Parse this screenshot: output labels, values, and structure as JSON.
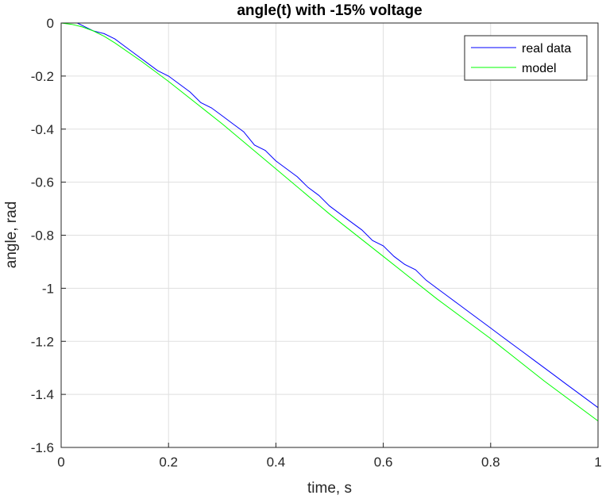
{
  "chart_data": {
    "type": "line",
    "title": "angle(t) with -15% voltage",
    "xlabel": "time, s",
    "ylabel": "angle, rad",
    "xlim": [
      0,
      1
    ],
    "ylim": [
      -1.6,
      0
    ],
    "grid": true,
    "legend_position": "top-right",
    "x_ticks": [
      0,
      0.2,
      0.4,
      0.6,
      0.8,
      1
    ],
    "x_tick_labels": [
      "0",
      "0.2",
      "0.4",
      "0.6",
      "0.8",
      "1"
    ],
    "y_ticks": [
      0,
      -0.2,
      -0.4,
      -0.6,
      -0.8,
      -1,
      -1.2,
      -1.4,
      -1.6
    ],
    "y_tick_labels": [
      "0",
      "-0.2",
      "-0.4",
      "-0.6",
      "-0.8",
      "-1",
      "-1.2",
      "-1.4",
      "-1.6"
    ],
    "series": [
      {
        "name": "real data",
        "color": "#0000ff",
        "x": [
          0,
          0.01,
          0.02,
          0.03,
          0.04,
          0.05,
          0.06,
          0.08,
          0.1,
          0.12,
          0.14,
          0.16,
          0.18,
          0.2,
          0.22,
          0.24,
          0.26,
          0.28,
          0.3,
          0.32,
          0.34,
          0.36,
          0.38,
          0.4,
          0.42,
          0.44,
          0.46,
          0.48,
          0.5,
          0.52,
          0.54,
          0.56,
          0.58,
          0.6,
          0.62,
          0.64,
          0.66,
          0.68,
          0.7,
          0.72,
          0.74,
          0.76,
          0.78,
          0.8,
          0.82,
          0.84,
          0.86,
          0.88,
          0.9,
          0.92,
          0.94,
          0.96,
          0.98,
          1.0
        ],
        "y": [
          0,
          0,
          0,
          0,
          -0.01,
          -0.02,
          -0.03,
          -0.04,
          -0.06,
          -0.09,
          -0.12,
          -0.15,
          -0.18,
          -0.2,
          -0.23,
          -0.26,
          -0.3,
          -0.32,
          -0.35,
          -0.38,
          -0.41,
          -0.46,
          -0.48,
          -0.52,
          -0.55,
          -0.58,
          -0.62,
          -0.65,
          -0.69,
          -0.72,
          -0.75,
          -0.78,
          -0.82,
          -0.84,
          -0.88,
          -0.91,
          -0.93,
          -0.97,
          -1.0,
          -1.03,
          -1.06,
          -1.09,
          -1.12,
          -1.15,
          -1.18,
          -1.21,
          -1.24,
          -1.27,
          -1.3,
          -1.33,
          -1.36,
          -1.39,
          -1.42,
          -1.45
        ]
      },
      {
        "name": "model",
        "color": "#00ff00",
        "x": [
          0,
          0.02,
          0.04,
          0.06,
          0.08,
          0.1,
          0.15,
          0.2,
          0.3,
          0.4,
          0.5,
          0.6,
          0.7,
          0.8,
          0.9,
          1.0
        ],
        "y": [
          0,
          -0.005,
          -0.015,
          -0.03,
          -0.05,
          -0.075,
          -0.145,
          -0.22,
          -0.38,
          -0.55,
          -0.72,
          -0.88,
          -1.04,
          -1.19,
          -1.35,
          -1.5
        ]
      }
    ]
  }
}
